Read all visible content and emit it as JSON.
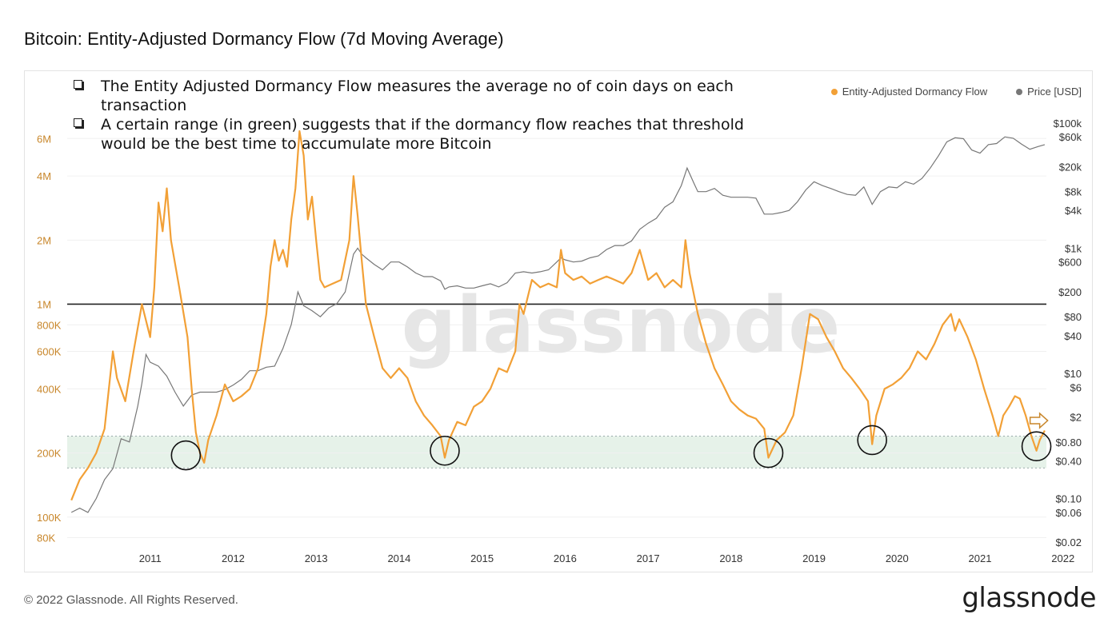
{
  "title": "Bitcoin: Entity-Adjusted Dormancy Flow (7d Moving Average)",
  "footer": {
    "copyright": "© 2022 Glassnode. All Rights Reserved.",
    "logo": "glassnode"
  },
  "watermark": "glassnode",
  "notes": [
    "The Entity Adjusted Dormancy Flow measures the average no of  coin days on each transaction",
    "A certain range (in green) suggests that if the dormancy flow reaches that threshold would be the best time to accumulate more Bitcoin"
  ],
  "colors": {
    "dormancy": "#f2a036",
    "price": "#777777",
    "band": "#e6f2e9",
    "threshold": "#222222"
  },
  "chart_data": {
    "type": "line",
    "title": "Bitcoin: Entity-Adjusted Dormancy Flow (7d Moving Average)",
    "x_ticks": [
      "2011",
      "2012",
      "2013",
      "2014",
      "2015",
      "2016",
      "2017",
      "2018",
      "2019",
      "2020",
      "2021",
      "2022"
    ],
    "left_axis": {
      "scale": "log",
      "ticks": [
        "6M",
        "4M",
        "2M",
        "1M",
        "800K",
        "600K",
        "400K",
        "200K",
        "100K",
        "80K"
      ],
      "range": [
        70000,
        8000000
      ]
    },
    "right_axis": {
      "scale": "log",
      "ticks": [
        "$100k",
        "$60k",
        "$20k",
        "$8k",
        "$4k",
        "$1k",
        "$600",
        "$200",
        "$80",
        "$40",
        "$10",
        "$6",
        "$2",
        "$0.80",
        "$0.40",
        "$0.10",
        "$0.06",
        "$0.02"
      ],
      "range": [
        0.015,
        150000
      ]
    },
    "legend": {
      "position": "top-right",
      "items": [
        "Entity-Adjusted Dormancy Flow",
        "Price [USD]"
      ]
    },
    "threshold_line": 1000000,
    "accumulation_band": [
      170000,
      240000
    ],
    "series": [
      {
        "name": "Entity-Adjusted Dormancy Flow",
        "axis": "left",
        "points": [
          [
            2010.55,
            120000
          ],
          [
            2010.65,
            150000
          ],
          [
            2010.75,
            170000
          ],
          [
            2010.85,
            200000
          ],
          [
            2010.95,
            260000
          ],
          [
            2011.05,
            600000
          ],
          [
            2011.1,
            450000
          ],
          [
            2011.2,
            350000
          ],
          [
            2011.3,
            600000
          ],
          [
            2011.4,
            1000000
          ],
          [
            2011.5,
            700000
          ],
          [
            2011.55,
            1200000
          ],
          [
            2011.6,
            3000000
          ],
          [
            2011.65,
            2200000
          ],
          [
            2011.7,
            3500000
          ],
          [
            2011.75,
            2000000
          ],
          [
            2011.85,
            1200000
          ],
          [
            2011.95,
            700000
          ],
          [
            2012.0,
            400000
          ],
          [
            2012.05,
            250000
          ],
          [
            2012.1,
            200000
          ],
          [
            2012.15,
            180000
          ],
          [
            2012.2,
            230000
          ],
          [
            2012.3,
            300000
          ],
          [
            2012.4,
            420000
          ],
          [
            2012.5,
            350000
          ],
          [
            2012.6,
            370000
          ],
          [
            2012.7,
            400000
          ],
          [
            2012.8,
            500000
          ],
          [
            2012.9,
            900000
          ],
          [
            2012.95,
            1500000
          ],
          [
            2013.0,
            2000000
          ],
          [
            2013.05,
            1600000
          ],
          [
            2013.1,
            1800000
          ],
          [
            2013.15,
            1500000
          ],
          [
            2013.2,
            2500000
          ],
          [
            2013.25,
            3500000
          ],
          [
            2013.3,
            6500000
          ],
          [
            2013.35,
            5000000
          ],
          [
            2013.4,
            2500000
          ],
          [
            2013.45,
            3200000
          ],
          [
            2013.5,
            2000000
          ],
          [
            2013.55,
            1300000
          ],
          [
            2013.6,
            1200000
          ],
          [
            2013.7,
            1250000
          ],
          [
            2013.8,
            1300000
          ],
          [
            2013.9,
            2000000
          ],
          [
            2013.95,
            4000000
          ],
          [
            2014.0,
            2600000
          ],
          [
            2014.05,
            1600000
          ],
          [
            2014.1,
            1000000
          ],
          [
            2014.2,
            700000
          ],
          [
            2014.3,
            500000
          ],
          [
            2014.4,
            450000
          ],
          [
            2014.5,
            500000
          ],
          [
            2014.6,
            450000
          ],
          [
            2014.7,
            350000
          ],
          [
            2014.8,
            300000
          ],
          [
            2014.9,
            270000
          ],
          [
            2015.0,
            240000
          ],
          [
            2015.05,
            190000
          ],
          [
            2015.1,
            230000
          ],
          [
            2015.2,
            280000
          ],
          [
            2015.3,
            270000
          ],
          [
            2015.4,
            330000
          ],
          [
            2015.5,
            350000
          ],
          [
            2015.6,
            400000
          ],
          [
            2015.7,
            500000
          ],
          [
            2015.8,
            480000
          ],
          [
            2015.9,
            600000
          ],
          [
            2015.95,
            1000000
          ],
          [
            2016.0,
            900000
          ],
          [
            2016.1,
            1300000
          ],
          [
            2016.2,
            1200000
          ],
          [
            2016.3,
            1250000
          ],
          [
            2016.4,
            1200000
          ],
          [
            2016.45,
            1800000
          ],
          [
            2016.5,
            1400000
          ],
          [
            2016.6,
            1300000
          ],
          [
            2016.7,
            1350000
          ],
          [
            2016.8,
            1250000
          ],
          [
            2016.9,
            1300000
          ],
          [
            2017.0,
            1350000
          ],
          [
            2017.1,
            1300000
          ],
          [
            2017.2,
            1250000
          ],
          [
            2017.3,
            1400000
          ],
          [
            2017.4,
            1800000
          ],
          [
            2017.5,
            1300000
          ],
          [
            2017.6,
            1400000
          ],
          [
            2017.7,
            1200000
          ],
          [
            2017.8,
            1300000
          ],
          [
            2017.9,
            1200000
          ],
          [
            2017.95,
            2000000
          ],
          [
            2018.0,
            1400000
          ],
          [
            2018.1,
            900000
          ],
          [
            2018.2,
            650000
          ],
          [
            2018.3,
            500000
          ],
          [
            2018.4,
            420000
          ],
          [
            2018.5,
            350000
          ],
          [
            2018.6,
            320000
          ],
          [
            2018.7,
            300000
          ],
          [
            2018.8,
            290000
          ],
          [
            2018.9,
            260000
          ],
          [
            2018.95,
            190000
          ],
          [
            2019.05,
            230000
          ],
          [
            2019.15,
            250000
          ],
          [
            2019.25,
            300000
          ],
          [
            2019.35,
            500000
          ],
          [
            2019.45,
            900000
          ],
          [
            2019.55,
            850000
          ],
          [
            2019.65,
            700000
          ],
          [
            2019.75,
            600000
          ],
          [
            2019.85,
            500000
          ],
          [
            2019.95,
            450000
          ],
          [
            2020.05,
            400000
          ],
          [
            2020.15,
            350000
          ],
          [
            2020.2,
            220000
          ],
          [
            2020.25,
            300000
          ],
          [
            2020.35,
            400000
          ],
          [
            2020.45,
            420000
          ],
          [
            2020.55,
            450000
          ],
          [
            2020.65,
            500000
          ],
          [
            2020.75,
            600000
          ],
          [
            2020.85,
            550000
          ],
          [
            2020.95,
            650000
          ],
          [
            2021.05,
            800000
          ],
          [
            2021.15,
            900000
          ],
          [
            2021.2,
            750000
          ],
          [
            2021.25,
            850000
          ],
          [
            2021.35,
            700000
          ],
          [
            2021.45,
            550000
          ],
          [
            2021.55,
            400000
          ],
          [
            2021.65,
            300000
          ],
          [
            2021.72,
            240000
          ],
          [
            2021.78,
            300000
          ],
          [
            2021.85,
            330000
          ],
          [
            2021.92,
            370000
          ],
          [
            2021.98,
            360000
          ],
          [
            2022.05,
            300000
          ],
          [
            2022.12,
            240000
          ],
          [
            2022.18,
            205000
          ],
          [
            2022.22,
            230000
          ],
          [
            2022.28,
            255000
          ]
        ]
      },
      {
        "name": "Price [USD]",
        "axis": "right",
        "points": [
          [
            2010.55,
            0.06
          ],
          [
            2010.65,
            0.07
          ],
          [
            2010.75,
            0.06
          ],
          [
            2010.85,
            0.1
          ],
          [
            2010.95,
            0.2
          ],
          [
            2011.05,
            0.3
          ],
          [
            2011.15,
            0.9
          ],
          [
            2011.25,
            0.8
          ],
          [
            2011.35,
            3
          ],
          [
            2011.4,
            7
          ],
          [
            2011.45,
            20
          ],
          [
            2011.5,
            15
          ],
          [
            2011.6,
            13
          ],
          [
            2011.7,
            9
          ],
          [
            2011.8,
            5
          ],
          [
            2011.9,
            3
          ],
          [
            2012.0,
            4.5
          ],
          [
            2012.1,
            5
          ],
          [
            2012.2,
            5
          ],
          [
            2012.3,
            5
          ],
          [
            2012.4,
            5.5
          ],
          [
            2012.5,
            6.5
          ],
          [
            2012.6,
            8
          ],
          [
            2012.7,
            11
          ],
          [
            2012.8,
            11
          ],
          [
            2012.9,
            12.5
          ],
          [
            2013.0,
            13
          ],
          [
            2013.1,
            25
          ],
          [
            2013.2,
            60
          ],
          [
            2013.28,
            200
          ],
          [
            2013.35,
            120
          ],
          [
            2013.45,
            100
          ],
          [
            2013.55,
            80
          ],
          [
            2013.65,
            110
          ],
          [
            2013.75,
            130
          ],
          [
            2013.85,
            200
          ],
          [
            2013.95,
            800
          ],
          [
            2014.0,
            1000
          ],
          [
            2014.05,
            800
          ],
          [
            2014.1,
            700
          ],
          [
            2014.2,
            550
          ],
          [
            2014.3,
            450
          ],
          [
            2014.4,
            600
          ],
          [
            2014.5,
            600
          ],
          [
            2014.6,
            500
          ],
          [
            2014.7,
            400
          ],
          [
            2014.8,
            350
          ],
          [
            2014.9,
            350
          ],
          [
            2015.0,
            300
          ],
          [
            2015.05,
            220
          ],
          [
            2015.1,
            240
          ],
          [
            2015.2,
            250
          ],
          [
            2015.3,
            230
          ],
          [
            2015.4,
            230
          ],
          [
            2015.5,
            250
          ],
          [
            2015.6,
            270
          ],
          [
            2015.7,
            240
          ],
          [
            2015.8,
            280
          ],
          [
            2015.9,
            400
          ],
          [
            2016.0,
            420
          ],
          [
            2016.1,
            400
          ],
          [
            2016.2,
            420
          ],
          [
            2016.3,
            450
          ],
          [
            2016.4,
            600
          ],
          [
            2016.45,
            700
          ],
          [
            2016.5,
            650
          ],
          [
            2016.6,
            600
          ],
          [
            2016.7,
            620
          ],
          [
            2016.8,
            700
          ],
          [
            2016.9,
            750
          ],
          [
            2017.0,
            950
          ],
          [
            2017.1,
            1100
          ],
          [
            2017.2,
            1100
          ],
          [
            2017.3,
            1300
          ],
          [
            2017.4,
            2000
          ],
          [
            2017.5,
            2500
          ],
          [
            2017.6,
            3000
          ],
          [
            2017.7,
            4500
          ],
          [
            2017.8,
            5500
          ],
          [
            2017.9,
            10000
          ],
          [
            2017.97,
            19000
          ],
          [
            2018.05,
            11000
          ],
          [
            2018.1,
            8000
          ],
          [
            2018.2,
            8000
          ],
          [
            2018.3,
            9000
          ],
          [
            2018.4,
            7000
          ],
          [
            2018.5,
            6500
          ],
          [
            2018.6,
            6500
          ],
          [
            2018.7,
            6500
          ],
          [
            2018.8,
            6300
          ],
          [
            2018.9,
            3500
          ],
          [
            2019.0,
            3500
          ],
          [
            2019.1,
            3700
          ],
          [
            2019.2,
            4000
          ],
          [
            2019.3,
            5500
          ],
          [
            2019.4,
            8500
          ],
          [
            2019.5,
            11500
          ],
          [
            2019.6,
            10000
          ],
          [
            2019.7,
            9000
          ],
          [
            2019.8,
            8000
          ],
          [
            2019.9,
            7200
          ],
          [
            2020.0,
            7000
          ],
          [
            2020.1,
            9500
          ],
          [
            2020.2,
            5000
          ],
          [
            2020.3,
            8000
          ],
          [
            2020.4,
            9500
          ],
          [
            2020.5,
            9200
          ],
          [
            2020.6,
            11500
          ],
          [
            2020.7,
            10500
          ],
          [
            2020.8,
            13000
          ],
          [
            2020.9,
            19000
          ],
          [
            2021.0,
            30000
          ],
          [
            2021.1,
            50000
          ],
          [
            2021.2,
            58000
          ],
          [
            2021.3,
            56000
          ],
          [
            2021.4,
            37000
          ],
          [
            2021.5,
            33000
          ],
          [
            2021.6,
            45000
          ],
          [
            2021.7,
            47000
          ],
          [
            2021.8,
            60000
          ],
          [
            2021.9,
            57000
          ],
          [
            2022.0,
            46000
          ],
          [
            2022.1,
            38000
          ],
          [
            2022.2,
            42000
          ],
          [
            2022.28,
            45000
          ]
        ]
      }
    ],
    "annotations": {
      "circles": [
        [
          2011.93,
          195000
        ],
        [
          2015.05,
          205000
        ],
        [
          2018.95,
          200000
        ],
        [
          2020.2,
          230000
        ],
        [
          2022.18,
          215000
        ]
      ],
      "arrow": [
        2022.2,
        265000
      ]
    }
  }
}
